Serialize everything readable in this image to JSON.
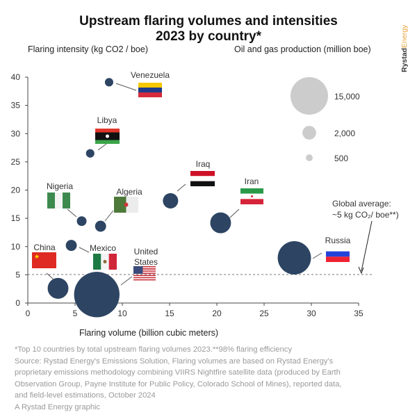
{
  "title_line1": "Upstream flaring volumes and intensities",
  "title_line2": "2023 by country*",
  "brand": {
    "part1": "Rystad",
    "part2": "Energy"
  },
  "footnote": [
    "*Top 10 countries by total upstream flaring volumes 2023.**98% flaring efficiency",
    "Source: Rystad Energy's Emissions Solution, Flaring volumes are based on Rystad Energy's",
    "proprietary emissions methodology combining VIIRS Nightfire satellite data (produced by Earth",
    "Observation Group, Payne Institute for Public Policy, Colorado School of Mines), reported data,",
    "and field-level estimations, October 2024",
    "A Rystad Energy graphic"
  ],
  "chart_data": {
    "type": "scatter",
    "title": "Upstream flaring volumes and intensities 2023 by country*",
    "xlabel": "Flaring volume (billion cubic meters)",
    "ylabel": "Flaring intensity (kg CO2 / boe)",
    "size_label": "Oil and gas production (million boe)",
    "xlim": [
      0,
      35
    ],
    "ylim": [
      0,
      40
    ],
    "xticks": [
      "0",
      "5",
      "10",
      "15",
      "20",
      "25",
      "30",
      "35"
    ],
    "yticks": [
      "0",
      "5",
      "10",
      "15",
      "20",
      "25",
      "30",
      "35",
      "40"
    ],
    "grid": false,
    "bubble_color": "#2d4563",
    "size_legend": {
      "color": "#cccccc",
      "values": [
        15000,
        2000,
        500
      ],
      "labels": [
        "15,000",
        "2,000",
        "500"
      ]
    },
    "reference_line": {
      "y": 5,
      "label_line1": "Global average:",
      "label_line2": "~5 kg CO₂/ boe**)"
    },
    "points": [
      {
        "country": "Venezuela",
        "x": 8.6,
        "y": 39.1,
        "production": 750
      },
      {
        "country": "Libya",
        "x": 6.6,
        "y": 26.5,
        "production": 750
      },
      {
        "country": "Nigeria",
        "x": 5.7,
        "y": 14.5,
        "production": 1000
      },
      {
        "country": "Algeria",
        "x": 7.7,
        "y": 13.6,
        "production": 1300
      },
      {
        "country": "Iraq",
        "x": 15.1,
        "y": 18.1,
        "production": 2500
      },
      {
        "country": "Iran",
        "x": 20.4,
        "y": 14.2,
        "production": 4600
      },
      {
        "country": "Mexico",
        "x": 4.6,
        "y": 10.2,
        "production": 1300
      },
      {
        "country": "China",
        "x": 3.2,
        "y": 2.6,
        "production": 4600
      },
      {
        "country": "United States",
        "x": 7.3,
        "y": 1.5,
        "production": 22000
      },
      {
        "country": "Russia",
        "x": 28.2,
        "y": 8.0,
        "production": 11800
      }
    ]
  }
}
